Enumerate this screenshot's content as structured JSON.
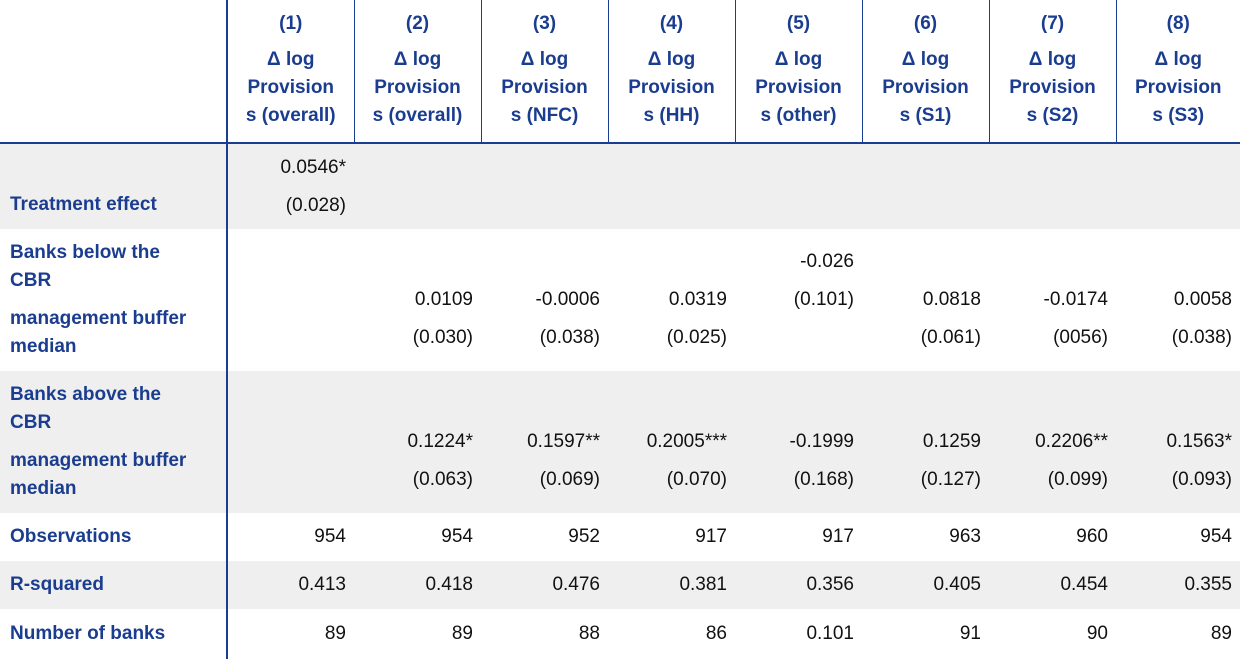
{
  "columns": [
    {
      "num": "(1)",
      "sym": "Δ log",
      "line2": "Provision",
      "line3": "s (overall)"
    },
    {
      "num": "(2)",
      "sym": "Δ log",
      "line2": "Provision",
      "line3": "s (overall)"
    },
    {
      "num": "(3)",
      "sym": "Δ log",
      "line2": "Provision",
      "line3": "s (NFC)"
    },
    {
      "num": "(4)",
      "sym": "Δ log",
      "line2": "Provision",
      "line3": "s (HH)"
    },
    {
      "num": "(5)",
      "sym": "Δ log",
      "line2": "Provision",
      "line3": "s (other)"
    },
    {
      "num": "(6)",
      "sym": "Δ log",
      "line2": "Provision",
      "line3": "s (S1)"
    },
    {
      "num": "(7)",
      "sym": "Δ log",
      "line2": "Provision",
      "line3": "s (S2)"
    },
    {
      "num": "(8)",
      "sym": "Δ log",
      "line2": "Provision",
      "line3": "s (S3)"
    }
  ],
  "rows": {
    "treatment": {
      "label": "Treatment effect",
      "coef": [
        "0.0546*",
        "",
        "",
        "",
        "",
        "",
        "",
        ""
      ],
      "se": [
        "(0.028)",
        "",
        "",
        "",
        "",
        "",
        "",
        ""
      ]
    },
    "below": {
      "label_a": "Banks below the",
      "label_b": "CBR",
      "label_c": "management buffer",
      "label_d": "median",
      "coef": [
        "",
        "0.0109",
        "-0.0006",
        "0.0319",
        "-0.026",
        "0.0818",
        "-0.0174",
        "0.0058"
      ],
      "se": [
        "",
        "(0.030)",
        "(0.038)",
        "(0.025)",
        "(0.101)",
        "(0.061)",
        "(0056)",
        "(0.038)"
      ]
    },
    "above": {
      "label_a": "Banks above the",
      "label_b": "CBR",
      "label_c": "management buffer",
      "label_d": "median",
      "coef": [
        "",
        "0.1224*",
        "0.1597**",
        "0.2005***",
        "-0.1999",
        "0.1259",
        "0.2206**",
        "0.1563*"
      ],
      "se": [
        "",
        "(0.063)",
        "(0.069)",
        "(0.070)",
        "(0.168)",
        "(0.127)",
        "(0.099)",
        "(0.093)"
      ]
    },
    "observations": {
      "label": "Observations",
      "values": [
        "954",
        "954",
        "952",
        "917",
        "917",
        "963",
        "960",
        "954"
      ]
    },
    "rsquared": {
      "label": "R-squared",
      "values": [
        "0.413",
        "0.418",
        "0.476",
        "0.381",
        "0.356",
        "0.405",
        "0.454",
        "0.355"
      ]
    },
    "banks": {
      "label": "Number of banks",
      "values": [
        "89",
        "89",
        "88",
        "86",
        "0.101",
        "91",
        "90",
        "89"
      ]
    }
  },
  "colors": {
    "header_text": "#1a3d8f",
    "shade": "#efefef",
    "rule": "#1a3d8f"
  }
}
